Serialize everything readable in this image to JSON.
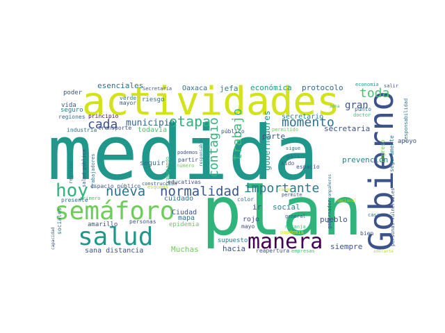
{
  "word_cloud": {
    "background": "#ffffff",
    "palette": {
      "yellow": "#d2e21b",
      "lime": "#a0da39",
      "green": "#4ac16d",
      "bright-green": "#2fb47c",
      "teal": "#1f988b",
      "teal-blue": "#26828e",
      "blue": "#31688e",
      "indigo": "#3b528b",
      "violet": "#443983",
      "purple": "#481a6c",
      "dark-purple": "#440154"
    },
    "words": [
      {
        "text": "medida",
        "color": "#1f988b"
      },
      {
        "text": "plan",
        "color": "#2fb47c"
      },
      {
        "text": "actividades",
        "color": "#d2e21b"
      },
      {
        "text": "Gobierno",
        "color": "#3b528b"
      },
      {
        "text": "semáforo",
        "color": "#6ccd5a"
      },
      {
        "text": "salud",
        "color": "#1f988b"
      },
      {
        "text": "manera",
        "color": "#440154"
      },
      {
        "text": "hoy",
        "color": "#2fb47c"
      },
      {
        "text": "normalidad",
        "color": "#39568c"
      },
      {
        "text": "nueva",
        "color": "#2d708e"
      },
      {
        "text": "importante",
        "color": "#2a788e"
      },
      {
        "text": "etapa",
        "color": "#2fb47c"
      },
      {
        "text": "momento",
        "color": "#2d708e"
      },
      {
        "text": "contagio",
        "color": "#2fb47c"
      },
      {
        "text": "trabajo",
        "color": "#3dbc74"
      },
      {
        "text": "toda",
        "color": "#4ac16d"
      },
      {
        "text": "cada",
        "color": "#3b528b"
      },
      {
        "text": "municipio",
        "color": "#31688e"
      },
      {
        "text": "gran",
        "color": "#3b528b"
      },
      {
        "text": "esenciales",
        "color": "#2d708e"
      },
      {
        "text": "Oaxaca",
        "color": "#2d708e"
      },
      {
        "text": "jefa",
        "color": "#26828e"
      },
      {
        "text": "económica",
        "color": "#1f988b"
      },
      {
        "text": "protocolo",
        "color": "#31688e"
      },
      {
        "text": "poder",
        "color": "#3b528b"
      },
      {
        "text": "mayor",
        "color": "#3b528b"
      },
      {
        "text": "riesgo",
        "color": "#2d708e"
      },
      {
        "text": "verde",
        "color": "#26828e"
      },
      {
        "text": "vida",
        "color": "#3b528b"
      },
      {
        "text": "seguro",
        "color": "#2a788e"
      },
      {
        "text": "regiones",
        "color": "#31688e"
      },
      {
        "text": "principio",
        "color": "#440154"
      },
      {
        "text": "industria",
        "color": "#2d708e"
      },
      {
        "text": "transporte",
        "color": "#3b528b"
      },
      {
        "text": "todavía",
        "color": "#4ac16d"
      },
      {
        "text": "Secretaría",
        "color": "#3b528b"
      },
      {
        "text": "economía",
        "color": "#1f988b"
      },
      {
        "text": "salir",
        "color": "#3b528b"
      },
      {
        "text": "zona",
        "color": "#3dbc74"
      },
      {
        "text": "punto",
        "color": "#2d708e"
      },
      {
        "text": "doctor",
        "color": "#3dbc74"
      },
      {
        "text": "responsabilidad",
        "color": "#2d708e"
      },
      {
        "text": "secretario",
        "color": "#26828e"
      },
      {
        "text": "secretaria",
        "color": "#3b528b"
      },
      {
        "text": "público",
        "color": "#3b528b"
      },
      {
        "text": "permitido",
        "color": "#6ccd5a"
      },
      {
        "text": "parte",
        "color": "#3b528b"
      },
      {
        "text": "gobernadores",
        "color": "#1f988b"
      },
      {
        "text": "prevención",
        "color": "#26828e"
      },
      {
        "text": "apoyo",
        "color": "#3b528b"
      },
      {
        "text": "seguramente",
        "color": "#2d708e"
      },
      {
        "text": "ingreso",
        "color": "#6ccd5a"
      },
      {
        "text": "espacio",
        "color": "#3b528b"
      },
      {
        "text": "sigue",
        "color": "#2a788e"
      },
      {
        "text": "país",
        "color": "#2d708e"
      },
      {
        "text": "sido",
        "color": "#3b528b"
      },
      {
        "text": "podemos",
        "color": "#3b528b"
      },
      {
        "text": "partir",
        "color": "#3b528b"
      },
      {
        "text": "número",
        "color": "#6ccd5a"
      },
      {
        "text": "responsable",
        "color": "#2d708e"
      },
      {
        "text": "seguir",
        "color": "#2d708e"
      },
      {
        "text": "trabajando",
        "color": "#3dbc74"
      },
      {
        "text": "regresar",
        "color": "#2a788e"
      },
      {
        "text": "salud pública",
        "color": "#3b528b"
      },
      {
        "text": "espacio público",
        "color": "#3b528b"
      },
      {
        "text": "trabajadores",
        "color": "#2d708e"
      },
      {
        "text": "construcción",
        "color": "#3b528b"
      },
      {
        "text": "educativas",
        "color": "#3b528b"
      },
      {
        "text": "esquema",
        "color": "#b5de2b"
      },
      {
        "text": "primero",
        "color": "#4ac16d"
      },
      {
        "text": "presente",
        "color": "#2d708e"
      },
      {
        "text": "cuidado",
        "color": "#2d708e"
      },
      {
        "text": "Ciudad",
        "color": "#3b528b"
      },
      {
        "text": "mapa",
        "color": "#2d708e"
      },
      {
        "text": "color",
        "color": "#2d708e"
      },
      {
        "text": "ir",
        "color": "#3b528b"
      },
      {
        "text": "social",
        "color": "#26828e"
      },
      {
        "text": "rojo",
        "color": "#3b528b"
      },
      {
        "text": "mayo",
        "color": "#3b528b"
      },
      {
        "text": "pueblo",
        "color": "#3b528b"
      },
      {
        "text": "casa",
        "color": "#2d708e"
      },
      {
        "text": "casos",
        "color": "#b5de2b"
      },
      {
        "text": "permite",
        "color": "#3b528b"
      },
      {
        "text": "compañeros",
        "color": "#2d708e"
      },
      {
        "text": "personas vulnerables",
        "color": "#3b528b"
      },
      {
        "text": "nacional",
        "color": "#b5de2b"
      },
      {
        "text": "general",
        "color": "#3b528b"
      },
      {
        "text": "naranja",
        "color": "#3dbc74"
      },
      {
        "text": "pandemia",
        "color": "#d2e21b"
      },
      {
        "text": "gobernador",
        "color": "#3b528b"
      },
      {
        "text": "personas",
        "color": "#3b528b"
      },
      {
        "text": "amarillo",
        "color": "#3b528b"
      },
      {
        "text": "epidemia",
        "color": "#6ccd5a"
      },
      {
        "text": "sociales",
        "color": "#2d708e"
      },
      {
        "text": "capacidad",
        "color": "#3b528b"
      },
      {
        "text": "sana distancia",
        "color": "#3b528b"
      },
      {
        "text": "Muchas",
        "color": "#6ccd5a"
      },
      {
        "text": "supuesto",
        "color": "#2a788e"
      },
      {
        "text": "hacia",
        "color": "#3b528b"
      },
      {
        "text": "reapertura",
        "color": "#3b528b"
      },
      {
        "text": "empresas",
        "color": "#4ac16d"
      },
      {
        "text": "siempre",
        "color": "#3b528b"
      },
      {
        "text": "bien",
        "color": "#3b528b"
      },
      {
        "text": "adelante",
        "color": "#b5de2b"
      }
    ]
  }
}
